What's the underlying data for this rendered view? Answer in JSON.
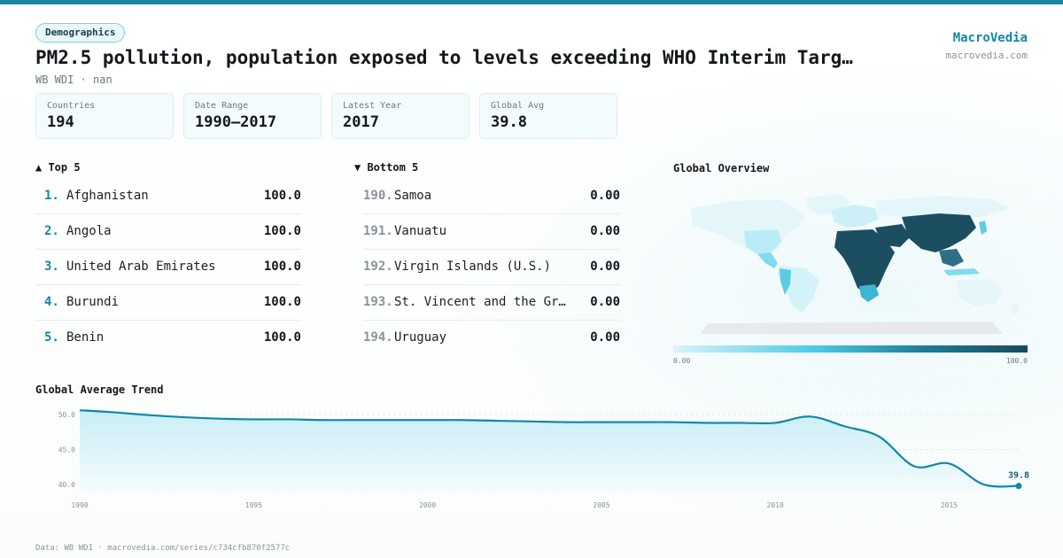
{
  "header": {
    "category": "Demographics",
    "title": "PM2.5 pollution, population exposed to levels exceeding WHO Interim Targ…",
    "subtitle": "WB WDI · nan",
    "brand": "MacroVedia",
    "brand_url": "macrovedia.com"
  },
  "stats": [
    {
      "label": "Countries",
      "value": "194"
    },
    {
      "label": "Date Range",
      "value": "1990–2017"
    },
    {
      "label": "Latest Year",
      "value": "2017"
    },
    {
      "label": "Global Avg",
      "value": "39.8"
    }
  ],
  "top5": {
    "heading": "▲ Top 5",
    "rows": [
      {
        "rank": "1.",
        "name": "Afghanistan",
        "value": "100.0"
      },
      {
        "rank": "2.",
        "name": "Angola",
        "value": "100.0"
      },
      {
        "rank": "3.",
        "name": "United Arab Emirates",
        "value": "100.0"
      },
      {
        "rank": "4.",
        "name": "Burundi",
        "value": "100.0"
      },
      {
        "rank": "5.",
        "name": "Benin",
        "value": "100.0"
      }
    ]
  },
  "bottom5": {
    "heading": "▼ Bottom 5",
    "rows": [
      {
        "rank": "190.",
        "name": "Samoa",
        "value": "0.00"
      },
      {
        "rank": "191.",
        "name": "Vanuatu",
        "value": "0.00"
      },
      {
        "rank": "192.",
        "name": "Virgin Islands (U.S.)",
        "value": "0.00"
      },
      {
        "rank": "193.",
        "name": "St. Vincent and the Gr…",
        "value": "0.00"
      },
      {
        "rank": "194.",
        "name": "Uruguay",
        "value": "0.00"
      }
    ]
  },
  "map": {
    "heading": "Global Overview",
    "scale_min": "0.00",
    "scale_max": "100.0"
  },
  "trend": {
    "heading": "Global Average Trend"
  },
  "colors": {
    "accent": "#1288a6",
    "fill": "#d6f1f7",
    "map_high": "#174a5d",
    "map_low": "#d9f4fa"
  },
  "footer": "Data: WB WDI · macrovedia.com/series/c734cfb870f2577c",
  "chart_data": {
    "type": "area",
    "title": "Global Average Trend",
    "x": [
      1990,
      1991,
      1992,
      1993,
      1994,
      1995,
      1996,
      1997,
      1998,
      1999,
      2000,
      2001,
      2002,
      2003,
      2004,
      2005,
      2006,
      2007,
      2008,
      2009,
      2010,
      2011,
      2012,
      2013,
      2014,
      2015,
      2016,
      2017
    ],
    "series": [
      {
        "values": [
          50.6,
          50.3,
          49.9,
          49.6,
          49.4,
          49.3,
          49.3,
          49.2,
          49.2,
          49.2,
          49.2,
          49.2,
          49.1,
          49.0,
          48.9,
          48.9,
          48.9,
          48.9,
          48.8,
          48.8,
          48.8,
          49.7,
          48.3,
          46.8,
          42.6,
          43.0,
          40.0,
          39.8
        ]
      }
    ],
    "xticks": [
      1990,
      1995,
      2000,
      2005,
      2010,
      2015
    ],
    "yticks": [
      40.0,
      45.0,
      50.0
    ],
    "ylim": [
      39,
      51
    ],
    "xlim": [
      1990,
      2017
    ],
    "end_label": "39.8",
    "grid": true
  }
}
